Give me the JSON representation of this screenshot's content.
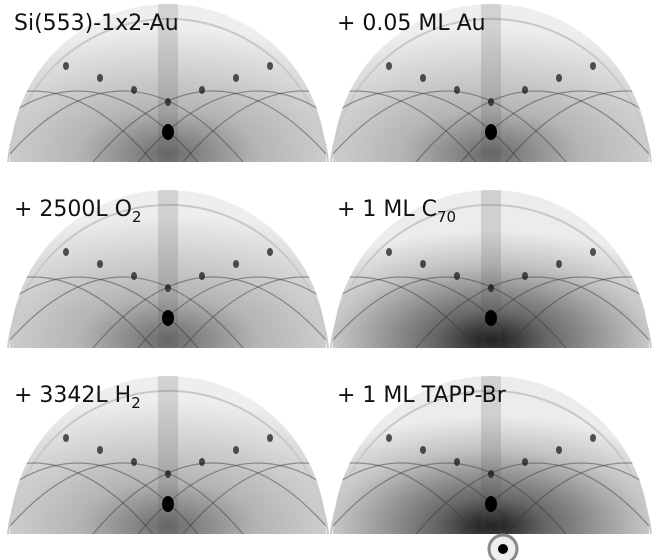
{
  "panels": [
    {
      "label": "Si(553)-1x2-Au"
    },
    {
      "label": "+ 0.05 ML Au"
    },
    {
      "label": "+ 2500L O",
      "subscript": "2"
    },
    {
      "label": "+ 1 ML C",
      "subscript": "70"
    },
    {
      "label": "+ 3342L H",
      "subscript": "2"
    },
    {
      "label": "+ 1 ML TAPP-Br"
    }
  ]
}
